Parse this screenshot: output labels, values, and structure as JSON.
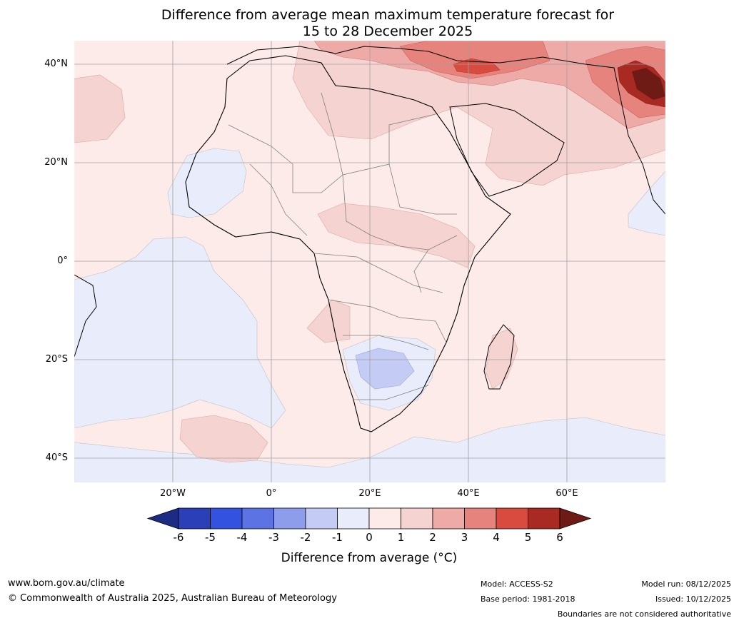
{
  "title": {
    "line1": "Difference from average mean maximum temperature forecast for",
    "line2": "15 to 28 December 2025"
  },
  "map": {
    "lat_labels": [
      "40°N",
      "20°N",
      "0°",
      "20°S",
      "40°S"
    ],
    "lon_labels": [
      "20°W",
      "0°",
      "20°E",
      "40°E",
      "60°E"
    ],
    "lon_values": [
      -20,
      0,
      20,
      40,
      60
    ],
    "lat_values": [
      40,
      20,
      0,
      -20,
      -40
    ],
    "lon_range": [
      -40,
      80
    ],
    "lat_range": [
      -45,
      45
    ]
  },
  "colorbar": {
    "ticks": [
      "-6",
      "-5",
      "-4",
      "-3",
      "-2",
      "-1",
      "0",
      "1",
      "2",
      "3",
      "4",
      "5",
      "6"
    ],
    "colors": [
      "#1c2c85",
      "#2a3fb8",
      "#3352e0",
      "#5c74e3",
      "#8d9deb",
      "#c4cbf4",
      "#e9ecfb",
      "#fcebe9",
      "#f5d3d0",
      "#edaaa6",
      "#e6837d",
      "#d94b3f",
      "#a82a22",
      "#6e1a15"
    ],
    "label": "Difference from average (°C)"
  },
  "footer": {
    "url": "www.bom.gov.au/climate",
    "copyright": "© Commonwealth of Australia 2025, Australian Bureau of Meteorology",
    "model": "Model: ACCESS-S2",
    "base_period": "Base period: 1981-2018",
    "model_run": "Model run: 08/12/2025",
    "issued": "Issued: 10/12/2025",
    "disclaimer": "Boundaries are not considered authoritative"
  }
}
